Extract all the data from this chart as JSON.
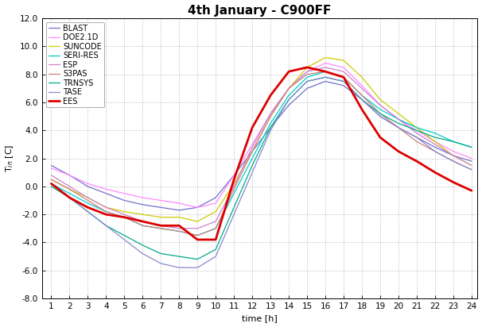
{
  "title": "4th January - C900FF",
  "xlabel": "time [h]",
  "xlim": [
    1,
    24
  ],
  "ylim": [
    -8.0,
    12.0
  ],
  "yticks": [
    -8.0,
    -6.0,
    -4.0,
    -2.0,
    0.0,
    2.0,
    4.0,
    6.0,
    8.0,
    10.0,
    12.0
  ],
  "xticks": [
    1,
    2,
    3,
    4,
    5,
    6,
    7,
    8,
    9,
    10,
    11,
    12,
    13,
    14,
    15,
    16,
    17,
    18,
    19,
    20,
    21,
    22,
    23,
    24
  ],
  "hours": [
    1,
    2,
    3,
    4,
    5,
    6,
    7,
    8,
    9,
    10,
    11,
    12,
    13,
    14,
    15,
    16,
    17,
    18,
    19,
    20,
    21,
    22,
    23,
    24
  ],
  "series": {
    "BLAST": {
      "color": "#7070cc",
      "linewidth": 0.9,
      "data": [
        1.5,
        0.8,
        0.0,
        -0.5,
        -1.0,
        -1.3,
        -1.5,
        -1.7,
        -1.5,
        -0.8,
        0.8,
        2.5,
        4.2,
        5.8,
        7.0,
        7.5,
        7.2,
        6.2,
        5.0,
        4.2,
        3.5,
        2.8,
        2.2,
        1.8
      ]
    },
    "DOE2.1D": {
      "color": "#ff88ff",
      "linewidth": 0.9,
      "data": [
        1.3,
        0.8,
        0.2,
        -0.2,
        -0.5,
        -0.8,
        -1.0,
        -1.2,
        -1.5,
        -1.2,
        0.8,
        3.0,
        5.2,
        7.0,
        8.2,
        8.8,
        8.5,
        7.2,
        5.8,
        4.8,
        4.0,
        3.2,
        2.5,
        2.0
      ]
    },
    "SUNCODE": {
      "color": "#cccc00",
      "linewidth": 0.9,
      "data": [
        0.5,
        -0.2,
        -0.8,
        -1.5,
        -1.8,
        -2.0,
        -2.2,
        -2.2,
        -2.5,
        -1.8,
        0.2,
        2.5,
        5.0,
        7.0,
        8.5,
        9.2,
        9.0,
        7.8,
        6.2,
        5.2,
        4.2,
        3.2,
        2.2,
        1.5
      ]
    },
    "SERI-RES": {
      "color": "#00cccc",
      "linewidth": 0.9,
      "data": [
        0.2,
        -0.5,
        -1.2,
        -1.8,
        -2.2,
        -2.8,
        -3.0,
        -3.2,
        -3.5,
        -3.0,
        -0.5,
        2.0,
        4.5,
        6.5,
        7.8,
        8.2,
        7.8,
        6.5,
        5.5,
        4.8,
        4.2,
        3.8,
        3.2,
        2.8
      ]
    },
    "ESP": {
      "color": "#cc80cc",
      "linewidth": 0.9,
      "data": [
        0.8,
        0.0,
        -0.8,
        -1.5,
        -2.0,
        -2.5,
        -2.8,
        -3.0,
        -3.0,
        -2.5,
        0.0,
        2.8,
        5.2,
        7.0,
        8.2,
        8.5,
        8.2,
        7.0,
        5.8,
        4.8,
        3.8,
        3.0,
        2.2,
        1.5
      ]
    },
    "S3PAS": {
      "color": "#cc8080",
      "linewidth": 0.9,
      "data": [
        0.5,
        -0.2,
        -1.0,
        -1.8,
        -2.2,
        -2.8,
        -3.0,
        -3.2,
        -3.5,
        -3.0,
        -0.2,
        2.5,
        5.0,
        7.0,
        8.0,
        8.2,
        7.8,
        6.5,
        5.2,
        4.2,
        3.2,
        2.5,
        1.8,
        1.2
      ]
    },
    "TRNSYS": {
      "color": "#00aa88",
      "linewidth": 0.9,
      "data": [
        0.0,
        -0.8,
        -1.8,
        -2.8,
        -3.5,
        -4.2,
        -4.8,
        -5.0,
        -5.2,
        -4.5,
        -1.5,
        1.5,
        4.2,
        6.2,
        7.5,
        7.8,
        7.5,
        6.2,
        5.2,
        4.5,
        4.0,
        3.5,
        3.2,
        2.8
      ]
    },
    "TASE": {
      "color": "#8888cc",
      "linewidth": 0.9,
      "data": [
        0.2,
        -0.8,
        -1.8,
        -2.8,
        -3.8,
        -4.8,
        -5.5,
        -5.8,
        -5.8,
        -5.0,
        -2.0,
        1.0,
        4.0,
        6.2,
        7.5,
        7.8,
        7.5,
        6.2,
        5.0,
        4.2,
        3.5,
        2.5,
        1.8,
        1.2
      ]
    },
    "EES": {
      "color": "#dd0000",
      "linewidth": 2.0,
      "data": [
        0.2,
        -0.8,
        -1.5,
        -2.0,
        -2.2,
        -2.5,
        -2.8,
        -2.8,
        -3.8,
        -3.8,
        0.5,
        4.2,
        6.5,
        8.2,
        8.5,
        8.2,
        7.8,
        5.5,
        3.5,
        2.5,
        1.8,
        1.0,
        0.3,
        -0.3
      ]
    }
  },
  "background_color": "#ffffff",
  "grid_color": "#999999",
  "title_fontsize": 11,
  "label_fontsize": 8,
  "tick_fontsize": 7.5
}
